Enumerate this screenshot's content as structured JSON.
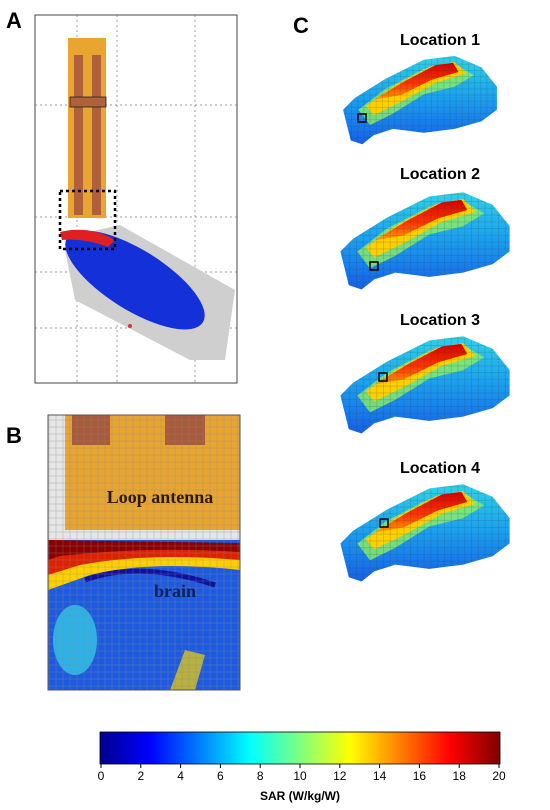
{
  "panel_labels": [
    "A",
    "B",
    "C"
  ],
  "panel_b": {
    "annotations": [
      "Loop antenna",
      "brain"
    ]
  },
  "panel_c": {
    "titles": [
      "Location 1",
      "Location 2",
      "Location 3",
      "Location 4"
    ]
  },
  "colorbar": {
    "label": "SAR (W/kg/W)",
    "lim": [
      0,
      20
    ],
    "ticks": [
      0,
      2,
      4,
      6,
      8,
      10,
      12,
      14,
      16,
      18,
      20
    ]
  }
}
